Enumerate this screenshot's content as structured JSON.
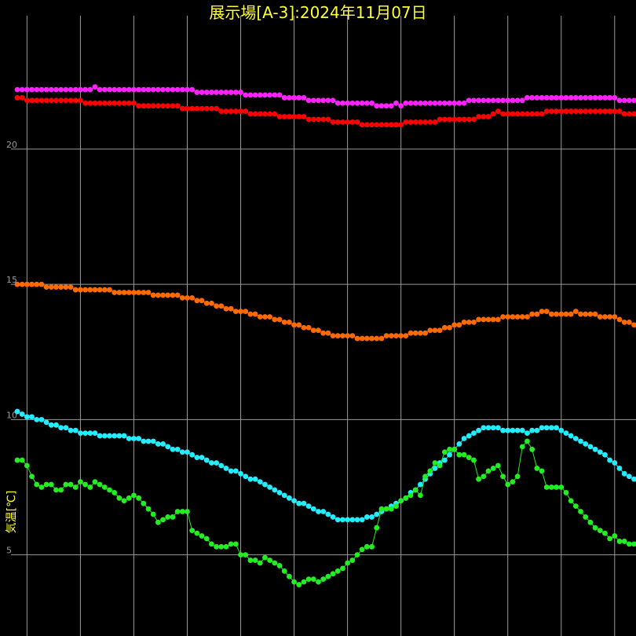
{
  "chart_data": {
    "type": "scatter",
    "title": "展示場[A-3]:2024年11月07日",
    "ylabel": "気温[℃]",
    "ylim": [
      2.0,
      24.7
    ],
    "xlim": [
      0,
      124
    ],
    "grid": true,
    "yticks": [
      5,
      10,
      15,
      20
    ],
    "vgrid_x": [
      2,
      13,
      24,
      35,
      46,
      57,
      68,
      79,
      90,
      101,
      112,
      123
    ],
    "series": [
      {
        "color": "#ff22ff",
        "values": [
          22.2,
          22.2,
          22.2,
          22.2,
          22.2,
          22.2,
          22.2,
          22.2,
          22.2,
          22.2,
          22.2,
          22.2,
          22.2,
          22.2,
          22.2,
          22.2,
          22.3,
          22.2,
          22.2,
          22.2,
          22.2,
          22.2,
          22.2,
          22.2,
          22.2,
          22.2,
          22.2,
          22.2,
          22.2,
          22.2,
          22.2,
          22.2,
          22.2,
          22.2,
          22.2,
          22.2,
          22.2,
          22.1,
          22.1,
          22.1,
          22.1,
          22.1,
          22.1,
          22.1,
          22.1,
          22.1,
          22.1,
          22.0,
          22.0,
          22.0,
          22.0,
          22.0,
          22.0,
          22.0,
          22.0,
          21.9,
          21.9,
          21.9,
          21.9,
          21.9,
          21.8,
          21.8,
          21.8,
          21.8,
          21.8,
          21.8,
          21.7,
          21.7,
          21.7,
          21.7,
          21.7,
          21.7,
          21.7,
          21.7,
          21.6,
          21.6,
          21.6,
          21.6,
          21.7,
          21.6,
          21.7,
          21.7,
          21.7,
          21.7,
          21.7,
          21.7,
          21.7,
          21.7,
          21.7,
          21.7,
          21.7,
          21.7,
          21.7,
          21.8,
          21.8,
          21.8,
          21.8,
          21.8,
          21.8,
          21.8,
          21.8,
          21.8,
          21.8,
          21.8,
          21.8,
          21.9,
          21.9,
          21.9,
          21.9,
          21.9,
          21.9,
          21.9,
          21.9,
          21.9,
          21.9,
          21.9,
          21.9,
          21.9,
          21.9,
          21.9,
          21.9,
          21.9,
          21.9,
          21.9,
          21.8,
          21.8,
          21.8,
          21.8,
          21.8,
          21.8,
          21.8
        ]
      },
      {
        "color": "#ff0000",
        "values": [
          21.9,
          21.9,
          21.8,
          21.8,
          21.8,
          21.8,
          21.8,
          21.8,
          21.8,
          21.8,
          21.8,
          21.8,
          21.8,
          21.8,
          21.7,
          21.7,
          21.7,
          21.7,
          21.7,
          21.7,
          21.7,
          21.7,
          21.7,
          21.7,
          21.7,
          21.6,
          21.6,
          21.6,
          21.6,
          21.6,
          21.6,
          21.6,
          21.6,
          21.6,
          21.5,
          21.5,
          21.5,
          21.5,
          21.5,
          21.5,
          21.5,
          21.5,
          21.4,
          21.4,
          21.4,
          21.4,
          21.4,
          21.4,
          21.3,
          21.3,
          21.3,
          21.3,
          21.3,
          21.3,
          21.2,
          21.2,
          21.2,
          21.2,
          21.2,
          21.2,
          21.1,
          21.1,
          21.1,
          21.1,
          21.1,
          21.0,
          21.0,
          21.0,
          21.0,
          21.0,
          21.0,
          20.9,
          20.9,
          20.9,
          20.9,
          20.9,
          20.9,
          20.9,
          20.9,
          20.9,
          21.0,
          21.0,
          21.0,
          21.0,
          21.0,
          21.0,
          21.0,
          21.1,
          21.1,
          21.1,
          21.1,
          21.1,
          21.1,
          21.1,
          21.1,
          21.2,
          21.2,
          21.2,
          21.3,
          21.4,
          21.3,
          21.3,
          21.3,
          21.3,
          21.3,
          21.3,
          21.3,
          21.3,
          21.3,
          21.4,
          21.4,
          21.4,
          21.4,
          21.4,
          21.4,
          21.4,
          21.4,
          21.4,
          21.4,
          21.4,
          21.4,
          21.4,
          21.4,
          21.4,
          21.4,
          21.3,
          21.3,
          21.3,
          21.3,
          21.3,
          21.3
        ]
      },
      {
        "color": "#ff6a00",
        "values": [
          15.0,
          15.0,
          15.0,
          15.0,
          15.0,
          15.0,
          14.9,
          14.9,
          14.9,
          14.9,
          14.9,
          14.9,
          14.8,
          14.8,
          14.8,
          14.8,
          14.8,
          14.8,
          14.8,
          14.8,
          14.7,
          14.7,
          14.7,
          14.7,
          14.7,
          14.7,
          14.7,
          14.7,
          14.6,
          14.6,
          14.6,
          14.6,
          14.6,
          14.6,
          14.5,
          14.5,
          14.5,
          14.4,
          14.4,
          14.3,
          14.3,
          14.2,
          14.2,
          14.1,
          14.1,
          14.0,
          14.0,
          14.0,
          13.9,
          13.9,
          13.8,
          13.8,
          13.8,
          13.7,
          13.7,
          13.6,
          13.6,
          13.5,
          13.5,
          13.4,
          13.4,
          13.3,
          13.3,
          13.2,
          13.2,
          13.1,
          13.1,
          13.1,
          13.1,
          13.1,
          13.0,
          13.0,
          13.0,
          13.0,
          13.0,
          13.0,
          13.1,
          13.1,
          13.1,
          13.1,
          13.1,
          13.2,
          13.2,
          13.2,
          13.2,
          13.3,
          13.3,
          13.3,
          13.4,
          13.4,
          13.5,
          13.5,
          13.6,
          13.6,
          13.6,
          13.7,
          13.7,
          13.7,
          13.7,
          13.7,
          13.8,
          13.8,
          13.8,
          13.8,
          13.8,
          13.8,
          13.9,
          13.9,
          14.0,
          14.0,
          13.9,
          13.9,
          13.9,
          13.9,
          13.9,
          14.0,
          13.9,
          13.9,
          13.9,
          13.9,
          13.8,
          13.8,
          13.8,
          13.8,
          13.7,
          13.6,
          13.6,
          13.5,
          13.5,
          13.5
        ]
      },
      {
        "color": "#22eeff",
        "values": [
          10.3,
          10.2,
          10.1,
          10.1,
          10.0,
          10.0,
          9.9,
          9.8,
          9.8,
          9.7,
          9.7,
          9.6,
          9.6,
          9.5,
          9.5,
          9.5,
          9.5,
          9.4,
          9.4,
          9.4,
          9.4,
          9.4,
          9.4,
          9.3,
          9.3,
          9.3,
          9.2,
          9.2,
          9.2,
          9.1,
          9.1,
          9.0,
          8.9,
          8.9,
          8.8,
          8.8,
          8.7,
          8.6,
          8.6,
          8.5,
          8.4,
          8.4,
          8.3,
          8.2,
          8.1,
          8.1,
          8.0,
          7.9,
          7.8,
          7.8,
          7.7,
          7.6,
          7.5,
          7.4,
          7.3,
          7.2,
          7.1,
          7.0,
          6.9,
          6.9,
          6.8,
          6.7,
          6.6,
          6.6,
          6.5,
          6.4,
          6.3,
          6.3,
          6.3,
          6.3,
          6.3,
          6.3,
          6.4,
          6.4,
          6.5,
          6.6,
          6.7,
          6.8,
          6.9,
          7.0,
          7.1,
          7.3,
          7.4,
          7.6,
          7.8,
          8.0,
          8.2,
          8.4,
          8.5,
          8.7,
          8.9,
          9.1,
          9.3,
          9.4,
          9.5,
          9.6,
          9.7,
          9.7,
          9.7,
          9.7,
          9.6,
          9.6,
          9.6,
          9.6,
          9.6,
          9.5,
          9.6,
          9.6,
          9.7,
          9.7,
          9.7,
          9.7,
          9.6,
          9.5,
          9.4,
          9.3,
          9.2,
          9.1,
          9.0,
          8.9,
          8.8,
          8.7,
          8.5,
          8.4,
          8.2,
          8.0,
          7.9,
          7.8,
          7.7,
          7.6,
          7.5
        ]
      },
      {
        "color": "#22ee22",
        "values": [
          8.5,
          8.5,
          8.3,
          7.9,
          7.6,
          7.5,
          7.6,
          7.6,
          7.4,
          7.4,
          7.6,
          7.6,
          7.5,
          7.7,
          7.6,
          7.5,
          7.7,
          7.6,
          7.5,
          7.4,
          7.3,
          7.1,
          7.0,
          7.1,
          7.2,
          7.1,
          6.9,
          6.7,
          6.5,
          6.2,
          6.3,
          6.4,
          6.4,
          6.6,
          6.6,
          6.6,
          5.9,
          5.8,
          5.7,
          5.6,
          5.4,
          5.3,
          5.3,
          5.3,
          5.4,
          5.4,
          5.0,
          5.0,
          4.8,
          4.8,
          4.7,
          4.9,
          4.8,
          4.7,
          4.6,
          4.4,
          4.2,
          4.0,
          3.9,
          4.0,
          4.1,
          4.1,
          4.0,
          4.1,
          4.2,
          4.3,
          4.4,
          4.5,
          4.7,
          4.8,
          5.0,
          5.2,
          5.3,
          5.3,
          6.0,
          6.7,
          6.7,
          6.7,
          6.8,
          7.0,
          7.1,
          7.2,
          7.4,
          7.2,
          7.9,
          8.1,
          8.4,
          8.3,
          8.8,
          8.9,
          8.9,
          8.7,
          8.7,
          8.6,
          8.5,
          7.8,
          7.9,
          8.1,
          8.2,
          8.3,
          7.9,
          7.6,
          7.7,
          7.9,
          9.0,
          9.2,
          8.9,
          8.2,
          8.1,
          7.5,
          7.5,
          7.5,
          7.5,
          7.3,
          7.0,
          6.8,
          6.6,
          6.4,
          6.2,
          6.0,
          5.9,
          5.8,
          5.6,
          5.7,
          5.5,
          5.5,
          5.4,
          5.4,
          5.6,
          5.5,
          5.4
        ]
      }
    ]
  }
}
